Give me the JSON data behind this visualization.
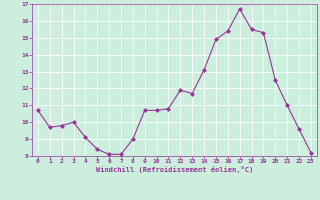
{
  "x": [
    0,
    1,
    2,
    3,
    4,
    5,
    6,
    7,
    8,
    9,
    10,
    11,
    12,
    13,
    14,
    15,
    16,
    17,
    18,
    19,
    20,
    21,
    22,
    23
  ],
  "y": [
    10.7,
    9.7,
    9.8,
    10.0,
    9.1,
    8.4,
    8.1,
    8.1,
    9.0,
    10.7,
    10.7,
    10.8,
    11.9,
    11.7,
    13.1,
    14.9,
    15.4,
    16.7,
    15.5,
    15.3,
    12.5,
    11.0,
    9.6,
    8.2
  ],
  "line_color": "#993399",
  "marker": "D",
  "marker_size": 2,
  "bg_color": "#cceedd",
  "grid_color": "#ffffff",
  "xlabel": "Windchill (Refroidissement éolien,°C)",
  "tick_color": "#993399",
  "ylim": [
    8,
    17
  ],
  "xlim": [
    -0.5,
    23.5
  ],
  "yticks": [
    8,
    9,
    10,
    11,
    12,
    13,
    14,
    15,
    16,
    17
  ],
  "xticks": [
    0,
    1,
    2,
    3,
    4,
    5,
    6,
    7,
    8,
    9,
    10,
    11,
    12,
    13,
    14,
    15,
    16,
    17,
    18,
    19,
    20,
    21,
    22,
    23
  ]
}
